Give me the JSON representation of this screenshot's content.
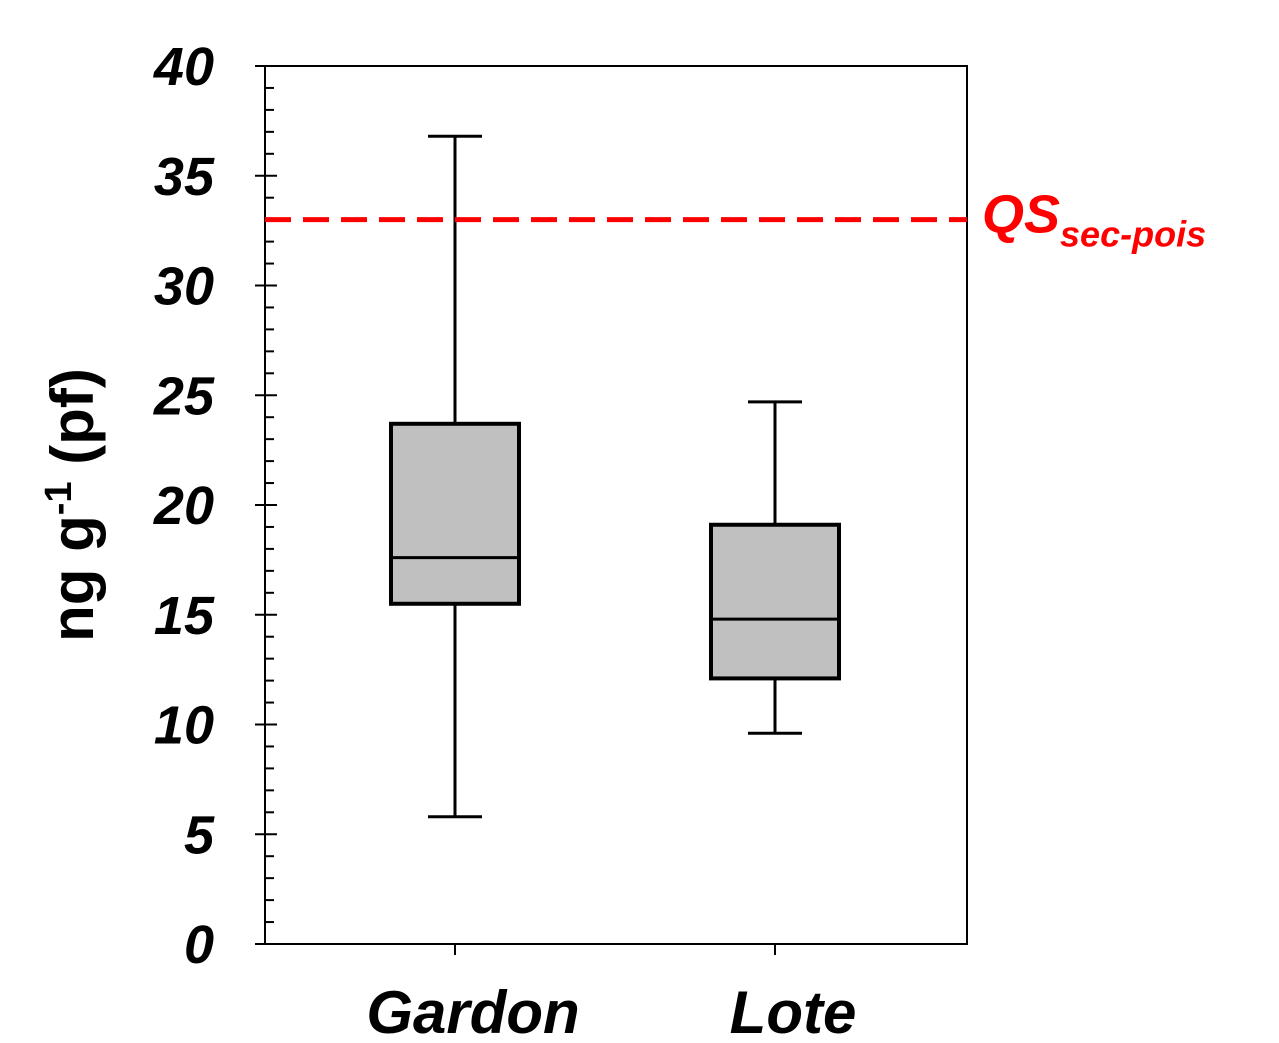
{
  "chart_data": {
    "type": "box",
    "ylabel_main": "ng g",
    "ylabel_sup": "-1",
    "ylabel_tail": " (pf)",
    "ylim": [
      0,
      40
    ],
    "yticks": [
      "0",
      "5",
      "10",
      "15",
      "20",
      "25",
      "30",
      "35",
      "40"
    ],
    "ytick_values": [
      0,
      5,
      10,
      15,
      20,
      25,
      30,
      35,
      40
    ],
    "minor_tick_step": 1,
    "categories": [
      "Gardon",
      "Lote"
    ],
    "boxes": [
      {
        "category": "Gardon",
        "whisker_low": 5.8,
        "q1": 15.5,
        "median": 17.6,
        "q3": 23.7,
        "whisker_high": 36.8
      },
      {
        "category": "Lote",
        "whisker_low": 9.6,
        "q1": 12.1,
        "median": 14.8,
        "q3": 19.1,
        "whisker_high": 24.7
      }
    ],
    "reference_line": {
      "value": 33,
      "label_main": "QS",
      "label_sub": "sec-pois",
      "color": "#ff0000",
      "style": "dashed"
    },
    "box_fill": "#c0c0c0",
    "grid": false
  }
}
